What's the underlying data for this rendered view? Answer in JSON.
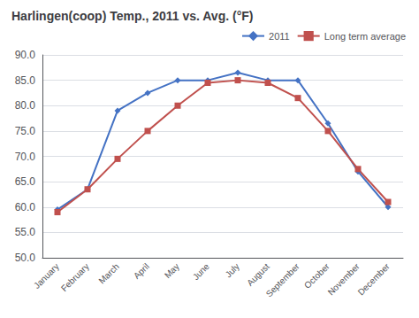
{
  "chart_data": {
    "type": "line",
    "title": "Harlingen(coop) Temp., 2011 vs. Avg. (°F)",
    "categories": [
      "January",
      "February",
      "March",
      "April",
      "May",
      "June",
      "July",
      "August",
      "September",
      "October",
      "November",
      "December"
    ],
    "series": [
      {
        "name": "2011",
        "color": "#4472C4",
        "marker": "diamond",
        "values": [
          59.5,
          63.5,
          79.0,
          82.5,
          85.0,
          85.0,
          86.5,
          85.0,
          85.0,
          76.5,
          67.0,
          60.0
        ]
      },
      {
        "name": "Long term average",
        "color": "#C0504D",
        "marker": "square",
        "values": [
          59.0,
          63.5,
          69.5,
          75.0,
          80.0,
          84.5,
          85.0,
          84.5,
          81.5,
          75.0,
          67.5,
          61.0
        ]
      }
    ],
    "ylim": [
      50.0,
      90.0
    ],
    "yticks": [
      {
        "value": 50.0,
        "label": "50.0"
      },
      {
        "value": 55.0,
        "label": "55.0"
      },
      {
        "value": 60.0,
        "label": "60.0"
      },
      {
        "value": 65.0,
        "label": "65.0"
      },
      {
        "value": 70.0,
        "label": "70.0"
      },
      {
        "value": 75.0,
        "label": "75.0"
      },
      {
        "value": 80.0,
        "label": "80.0"
      },
      {
        "value": 85.0,
        "label": "85.0"
      },
      {
        "value": 90.0,
        "label": "90.0"
      }
    ],
    "grid": true,
    "legend": "upper right"
  }
}
